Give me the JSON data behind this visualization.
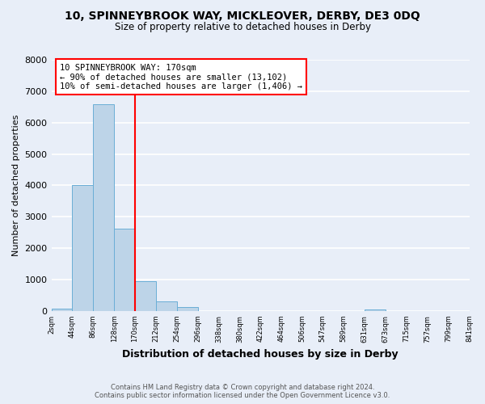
{
  "title": "10, SPINNEYBROOK WAY, MICKLEOVER, DERBY, DE3 0DQ",
  "subtitle": "Size of property relative to detached houses in Derby",
  "xlabel": "Distribution of detached houses by size in Derby",
  "ylabel": "Number of detached properties",
  "bin_edges": [
    2,
    44,
    86,
    128,
    170,
    212,
    254,
    296,
    338,
    380,
    422,
    464,
    506,
    547,
    589,
    631,
    673,
    715,
    757,
    799,
    841
  ],
  "bar_heights": [
    70,
    4000,
    6580,
    2620,
    960,
    310,
    120,
    0,
    0,
    0,
    0,
    0,
    0,
    0,
    0,
    50,
    0,
    0,
    0,
    0
  ],
  "bar_color": "#bdd4e8",
  "bar_edgecolor": "#6aaed6",
  "property_line_x": 170,
  "property_line_color": "red",
  "ylim": [
    0,
    8000
  ],
  "yticks": [
    0,
    1000,
    2000,
    3000,
    4000,
    5000,
    6000,
    7000,
    8000
  ],
  "annotation_box_text": "10 SPINNEYBROOK WAY: 170sqm\n← 90% of detached houses are smaller (13,102)\n10% of semi-detached houses are larger (1,406) →",
  "annotation_box_facecolor": "white",
  "annotation_box_edgecolor": "red",
  "footer_line1": "Contains HM Land Registry data © Crown copyright and database right 2024.",
  "footer_line2": "Contains public sector information licensed under the Open Government Licence v3.0.",
  "bg_color": "#e8eef8",
  "grid_color": "white"
}
